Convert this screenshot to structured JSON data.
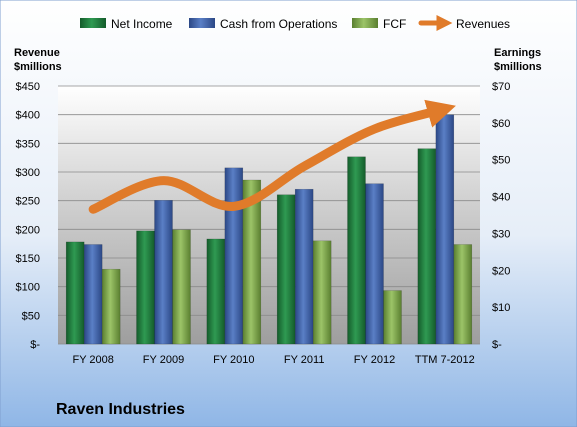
{
  "chart_data": {
    "type": "bar",
    "categories": [
      "FY 2008",
      "FY 2009",
      "FY 2010",
      "FY 2011",
      "FY 2012",
      "TTM 7-2012"
    ],
    "series": [
      {
        "name": "Net Income",
        "axis": "right",
        "color": "#1f7a3c",
        "values": [
          27.7,
          30.7,
          28.5,
          40.5,
          50.8,
          53.0
        ]
      },
      {
        "name": "Cash from Operations",
        "axis": "right",
        "color": "#3a5ea8",
        "values": [
          27.0,
          39.0,
          47.8,
          42.0,
          43.5,
          62.2
        ]
      },
      {
        "name": "FCF",
        "axis": "right",
        "color": "#7da84a",
        "values": [
          20.3,
          31.0,
          44.5,
          28.0,
          14.5,
          27.0
        ]
      },
      {
        "name": "Revenues",
        "axis": "left",
        "type": "line",
        "color": "#e07b2a",
        "values": [
          235,
          285,
          240,
          310,
          375,
          410
        ]
      }
    ],
    "left_axis": {
      "title_line1": "Revenue",
      "title_line2": "$millions",
      "ylim": [
        0,
        450
      ],
      "ticks": [
        0,
        50,
        100,
        150,
        200,
        250,
        300,
        350,
        400,
        450
      ],
      "tick_labels": [
        "$-",
        "$50",
        "$100",
        "$150",
        "$200",
        "$250",
        "$300",
        "$350",
        "$400",
        "$450"
      ]
    },
    "right_axis": {
      "title_line1": "Earnings",
      "title_line2": "$millions",
      "ylim": [
        0,
        70
      ],
      "ticks": [
        0,
        10,
        20,
        30,
        40,
        50,
        60,
        70
      ],
      "tick_labels": [
        "$-",
        "$10",
        "$20",
        "$30",
        "$40",
        "$50",
        "$60",
        "$70"
      ]
    },
    "legend_position": "top",
    "company": "Raven Industries"
  }
}
